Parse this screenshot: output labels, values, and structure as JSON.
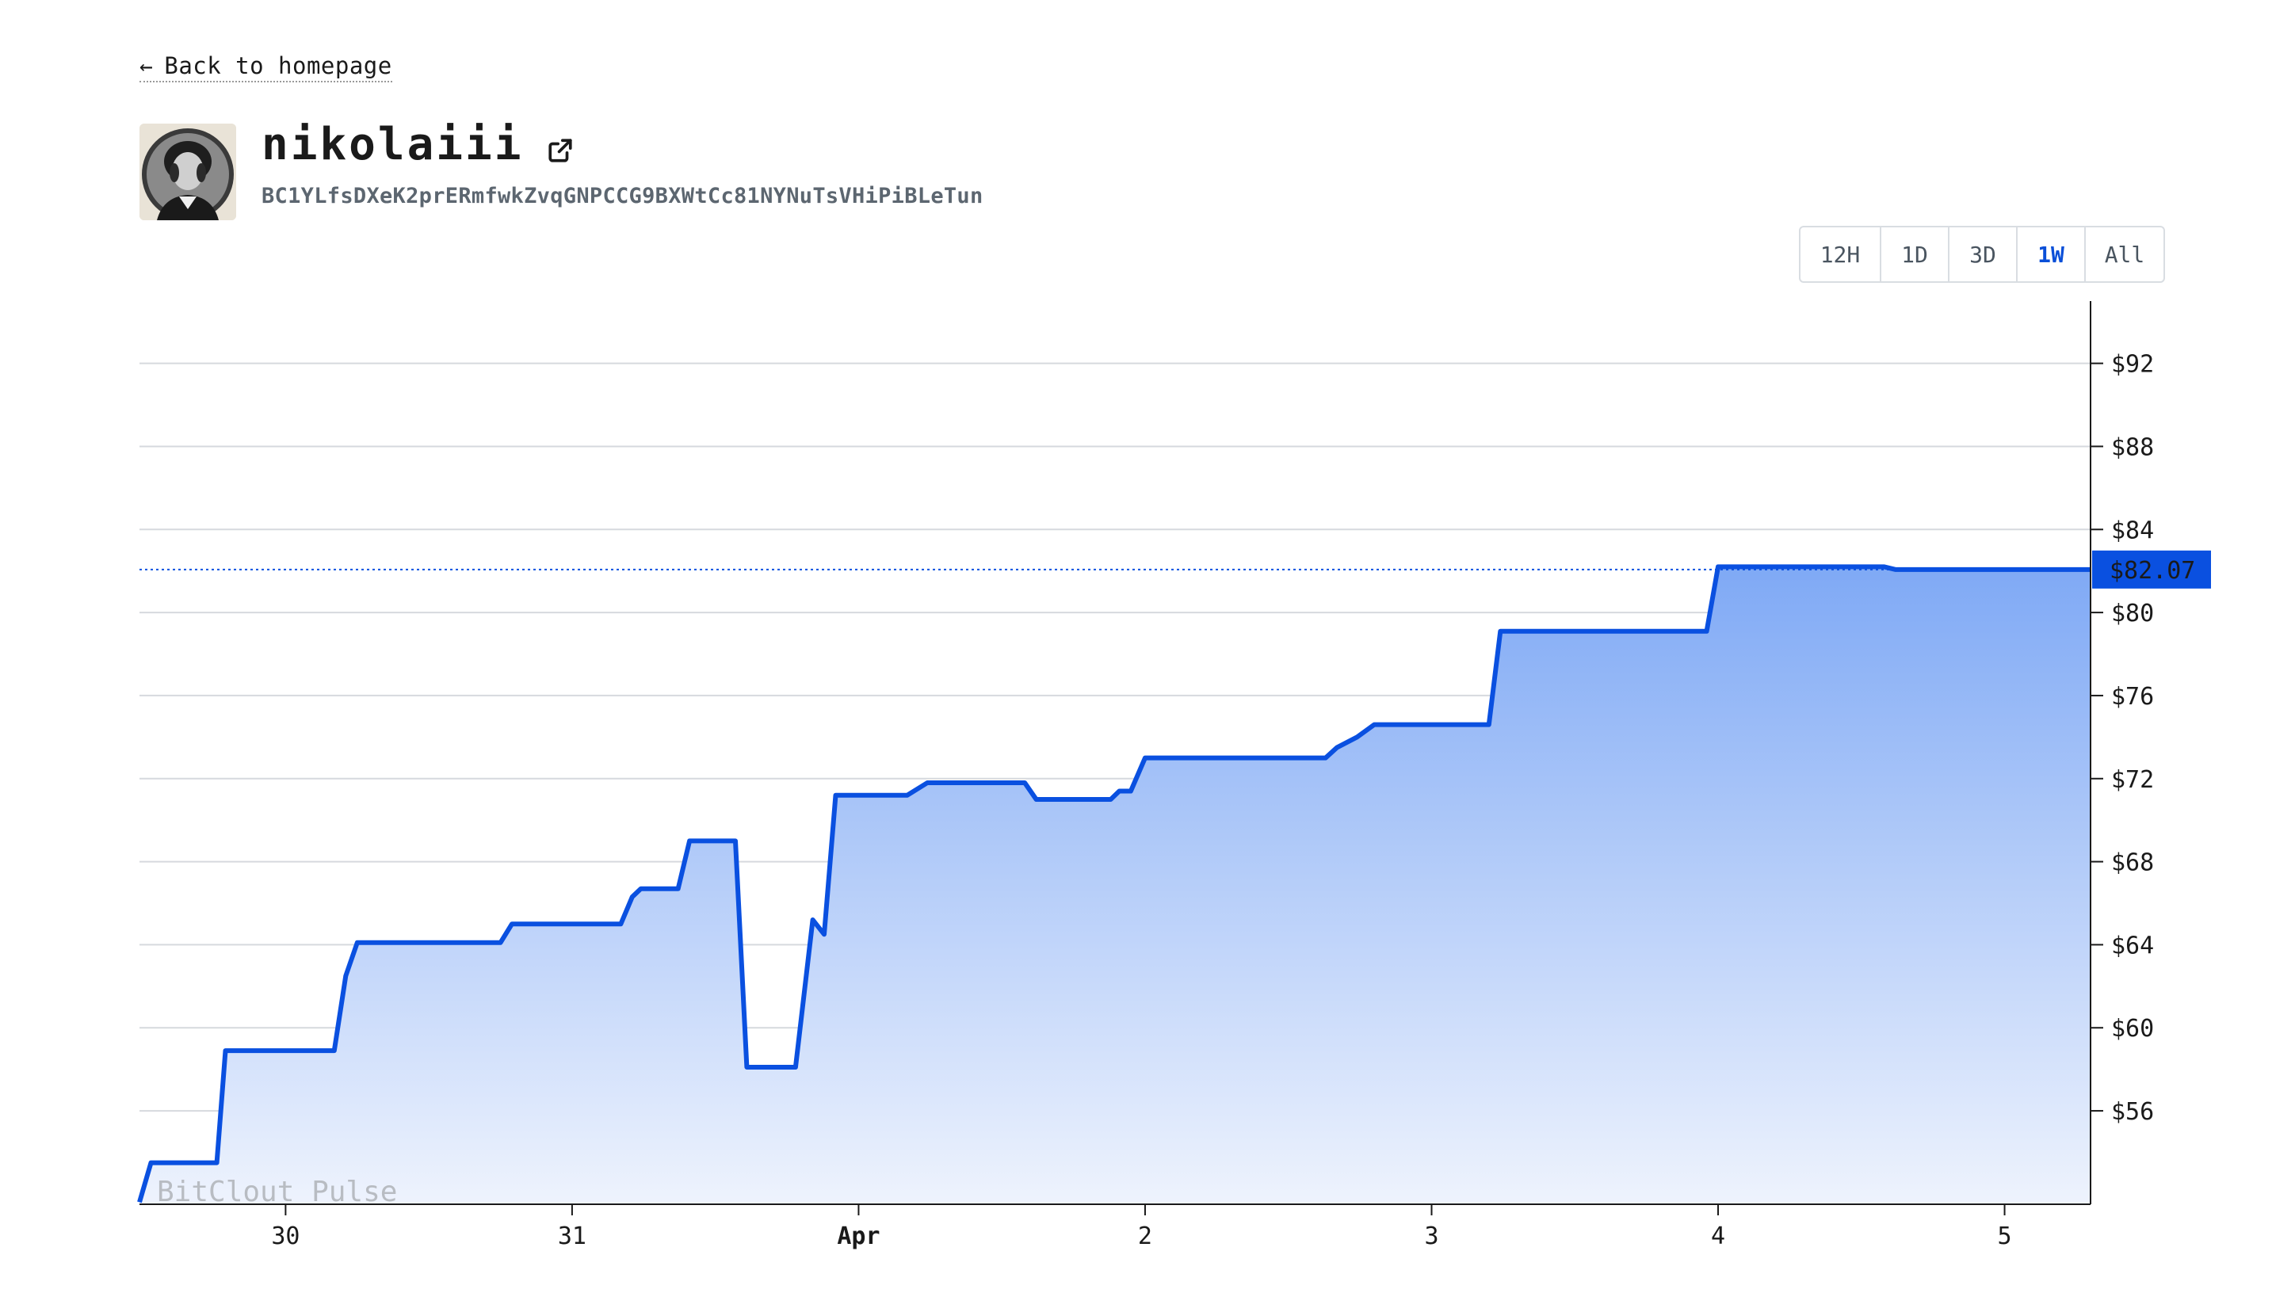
{
  "nav": {
    "back_label": "Back to homepage"
  },
  "profile": {
    "username": "nikolaiii",
    "public_key": "BC1YLfsDXeK2prERmfwkZvqGNPCCG9BXWtCc81NYNuTsVHiPiBLeTun",
    "avatar_icon": "portrait-avatar",
    "external_link_icon": "external-link-icon"
  },
  "range_selector": {
    "options": [
      "12H",
      "1D",
      "3D",
      "1W",
      "All"
    ],
    "selected": "1W"
  },
  "colors": {
    "line": "#0a50e0",
    "fill_top": "#7fa9f5",
    "fill_bottom": "#eef3fd",
    "price_tag_bg": "#0a50e0",
    "gridline": "#d6d9de",
    "active_range": "#0a4fd8"
  },
  "chart_data": {
    "type": "area",
    "watermark": "BitClout Pulse",
    "current_value_label": "$82.07",
    "current_value": 82.07,
    "ylim": [
      51.5,
      95
    ],
    "y_ticks": [
      56,
      60,
      64,
      68,
      72,
      76,
      80,
      84,
      88,
      92
    ],
    "y_tick_labels": [
      "$56",
      "$60",
      "$64",
      "$68",
      "$72",
      "$76",
      "$80",
      "$84",
      "$88",
      "$92"
    ],
    "y_axis_side": "right",
    "xlim": [
      29.49,
      36.3
    ],
    "x_ticks": [
      30,
      31,
      32,
      33,
      34,
      35,
      36
    ],
    "x_tick_labels": [
      "30",
      "31",
      "Apr",
      "2",
      "3",
      "4",
      "5"
    ],
    "x_tick_bold": [
      false,
      false,
      true,
      false,
      false,
      false,
      false
    ],
    "grid": "horizontal",
    "x": [
      29.49,
      29.53,
      29.76,
      29.79,
      30.17,
      30.21,
      30.25,
      30.75,
      30.79,
      31.17,
      31.21,
      31.24,
      31.37,
      31.41,
      31.57,
      31.61,
      31.78,
      31.84,
      31.88,
      31.92,
      32.17,
      32.24,
      32.58,
      32.62,
      32.88,
      32.91,
      32.95,
      33.0,
      33.5,
      33.6,
      33.63,
      33.67,
      33.74,
      33.8,
      34.2,
      34.24,
      34.46,
      34.5,
      34.96,
      35.0,
      35.58,
      35.62,
      35.88,
      36.3
    ],
    "y": [
      51.6,
      53.5,
      53.5,
      58.9,
      58.9,
      62.5,
      64.1,
      64.1,
      65.0,
      65.0,
      66.3,
      66.7,
      66.7,
      69.0,
      69.0,
      58.1,
      58.1,
      65.2,
      64.5,
      71.2,
      71.2,
      71.8,
      71.8,
      71.0,
      71.0,
      71.4,
      71.4,
      73.0,
      73.0,
      73.0,
      73.0,
      73.5,
      74.0,
      74.6,
      74.6,
      79.1,
      79.1,
      79.1,
      79.1,
      82.2,
      82.2,
      82.07,
      82.07,
      82.07
    ]
  }
}
